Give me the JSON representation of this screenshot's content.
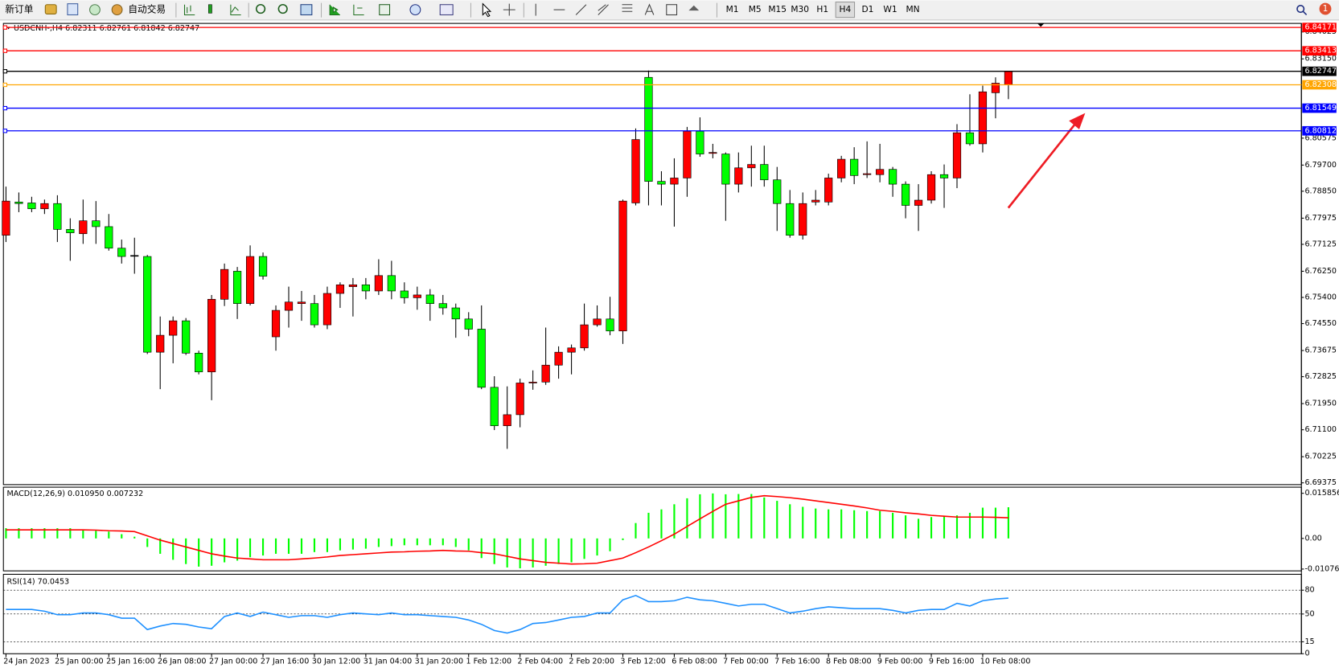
{
  "toolbar": {
    "new_order": "新订单",
    "auto_trading": "自动交易",
    "timeframes": [
      "M1",
      "M5",
      "M15",
      "M30",
      "H1",
      "H4",
      "D1",
      "W1",
      "MN"
    ],
    "active_timeframe": "H4",
    "notifications": "1"
  },
  "chart_data": [
    {
      "type": "candlestick",
      "title": "USDCNH-,H4  6.82311 6.82761 6.81842 6.82747",
      "categories": [
        "24 Jan 2023",
        null,
        null,
        null,
        "25 Jan 00:00",
        null,
        null,
        null,
        "25 Jan 16:00",
        null,
        null,
        null,
        "26 Jan 08:00",
        null,
        null,
        null,
        "27 Jan 00:00",
        null,
        null,
        null,
        "27 Jan 16:00",
        null,
        null,
        null,
        "30 Jan 12:00",
        null,
        null,
        null,
        "31 Jan 04:00",
        null,
        null,
        null,
        "31 Jan 20:00",
        null,
        null,
        null,
        "1 Feb 12:00",
        null,
        null,
        null,
        "2 Feb 04:00",
        null,
        null,
        null,
        "2 Feb 20:00",
        null,
        null,
        null,
        "3 Feb 12:00",
        null,
        null,
        null,
        "6 Feb 08:00",
        null,
        null,
        null,
        "7 Feb 00:00",
        null,
        null,
        null,
        "7 Feb 16:00",
        null,
        null,
        null,
        "8 Feb 08:00",
        null,
        null,
        null,
        "9 Feb 00:00",
        null,
        null,
        null,
        "9 Feb 16:00",
        null,
        null,
        null,
        "10 Feb 08:00",
        null,
        null
      ],
      "open": [
        6.7742,
        6.785,
        6.7847,
        6.7828,
        6.7845,
        6.7761,
        6.7747,
        6.7789,
        6.777,
        6.77,
        6.7673,
        6.7673,
        6.7362,
        6.7417,
        6.7464,
        6.7359,
        6.7298,
        6.7534,
        6.7625,
        6.752,
        6.7673,
        6.7412,
        6.7498,
        6.752,
        6.752,
        6.7451,
        6.7553,
        6.7575,
        6.7581,
        6.7561,
        6.7611,
        6.7561,
        6.7539,
        6.7548,
        6.752,
        6.7506,
        6.747,
        6.7437,
        6.7248,
        6.7123,
        6.7159,
        6.7262,
        6.7265,
        6.732,
        6.7362,
        6.7376,
        6.7451,
        6.747,
        6.7431,
        6.7847,
        6.8255,
        6.7917,
        6.7908,
        6.7928,
        6.808,
        6.8008,
        6.8006,
        6.7908,
        6.7961,
        6.7972,
        6.7922,
        6.7845,
        6.7742,
        6.785,
        6.785,
        6.7928,
        6.7989,
        6.7939,
        6.7939,
        6.7956,
        6.7908,
        6.7839,
        6.7856,
        6.7939,
        6.7928,
        6.8075,
        6.8039,
        6.8205,
        6.82311
      ],
      "high": [
        6.79,
        6.7881,
        6.7867,
        6.7858,
        6.7872,
        6.7797,
        6.7858,
        6.7853,
        6.7811,
        6.7728,
        6.7734,
        6.7678,
        6.7478,
        6.7478,
        6.7473,
        6.7367,
        6.7548,
        6.765,
        6.7639,
        6.7709,
        6.7686,
        6.7514,
        6.7575,
        6.7561,
        6.7548,
        6.7575,
        6.7589,
        6.7603,
        6.7603,
        6.7664,
        6.7659,
        6.7589,
        6.7575,
        6.7567,
        6.7548,
        6.752,
        6.7492,
        6.7514,
        6.7284,
        6.7251,
        6.7276,
        6.7303,
        6.7442,
        6.7381,
        6.7387,
        6.752,
        6.7514,
        6.7542,
        6.7858,
        6.8089,
        6.8277,
        6.795,
        6.7992,
        6.8094,
        6.8125,
        6.8039,
        6.8011,
        6.8011,
        6.8033,
        6.8033,
        6.7964,
        6.7889,
        6.7881,
        6.7889,
        6.7942,
        6.8,
        6.8028,
        6.8047,
        6.8039,
        6.7964,
        6.7917,
        6.7908,
        6.795,
        6.7972,
        6.8103,
        6.82,
        6.8228,
        6.8255,
        6.82761
      ],
      "low": [
        6.772,
        6.7817,
        6.7817,
        6.7811,
        6.772,
        6.7659,
        6.7714,
        6.7714,
        6.7692,
        6.765,
        6.7617,
        6.7356,
        6.7242,
        6.7326,
        6.7353,
        6.729,
        6.7206,
        6.7512,
        6.747,
        6.7514,
        6.7598,
        6.7367,
        6.7442,
        6.7464,
        6.7442,
        6.7437,
        6.7506,
        6.7478,
        6.7534,
        6.7548,
        6.7534,
        6.752,
        6.75,
        6.7464,
        6.7484,
        6.7409,
        6.7414,
        6.7242,
        6.7109,
        6.7048,
        6.7118,
        6.724,
        6.7256,
        6.7276,
        6.729,
        6.7367,
        6.7445,
        6.7417,
        6.7389,
        6.7839,
        6.7839,
        6.7839,
        6.777,
        6.7867,
        6.7997,
        6.7992,
        6.7789,
        6.7881,
        6.79,
        6.79,
        6.7756,
        6.7734,
        6.7728,
        6.7839,
        6.7839,
        6.7914,
        6.7908,
        6.7928,
        6.7914,
        6.7867,
        6.7797,
        6.7756,
        6.7845,
        6.7831,
        6.7895,
        6.8033,
        6.8011,
        6.8122,
        6.81842
      ],
      "close": [
        6.7853,
        6.7845,
        6.7828,
        6.7845,
        6.7761,
        6.775,
        6.7789,
        6.777,
        6.77,
        6.7673,
        6.7675,
        6.7362,
        6.7417,
        6.7464,
        6.7359,
        6.7298,
        6.7534,
        6.7631,
        6.752,
        6.7673,
        6.7609,
        6.7498,
        6.7525,
        6.7525,
        6.7451,
        6.7553,
        6.7581,
        6.7581,
        6.7561,
        6.7611,
        6.7561,
        6.7539,
        6.7548,
        6.752,
        6.7506,
        6.747,
        6.7437,
        6.7248,
        6.7123,
        6.7159,
        6.7262,
        6.7265,
        6.732,
        6.7362,
        6.7376,
        6.7451,
        6.747,
        6.7431,
        6.7853,
        6.8053,
        6.7917,
        6.7908,
        6.7928,
        6.808,
        6.8006,
        6.8011,
        6.7908,
        6.7961,
        6.7972,
        6.7922,
        6.7845,
        6.7742,
        6.7845,
        6.7856,
        6.7928,
        6.7989,
        6.7936,
        6.7942,
        6.7956,
        6.7908,
        6.7839,
        6.7856,
        6.7939,
        6.7928,
        6.8075,
        6.8039,
        6.8208,
        6.8236,
        6.82747
      ],
      "up_color": "#ff0000",
      "down_color": "#00ff00",
      "ylim": [
        6.69318,
        6.84303
      ],
      "yticks": [
        6.84025,
        {
          "value": 6.8315,
          "label": "6.83150"
        },
        6.80575,
        {
          "value": 6.797,
          "label": "6.79700"
        },
        {
          "value": 6.7885,
          "label": "6.78850"
        },
        6.77975,
        6.77125,
        {
          "value": 6.7625,
          "label": "6.76250"
        },
        {
          "value": 6.754,
          "label": "6.75400"
        },
        {
          "value": 6.7455,
          "label": "6.74550"
        },
        6.73675,
        6.72825,
        {
          "value": 6.7195,
          "label": "6.71950"
        },
        {
          "value": 6.711,
          "label": "6.71100"
        },
        6.70225,
        6.69375
      ],
      "hlines": [
        {
          "value": 6.84171,
          "color": "#ff0000"
        },
        {
          "value": 6.83413,
          "color": "#ff0000"
        },
        {
          "value": 6.82747,
          "color": "#000000"
        },
        {
          "value": 6.82308,
          "color": "#ffa500"
        },
        {
          "value": 6.81549,
          "color": "#0000ff"
        },
        {
          "value": 6.80812,
          "color": "#0000ff"
        }
      ],
      "grid": false
    },
    {
      "type": "bar",
      "title": "MACD(12,26,9) 0.010950 0.007232",
      "series": [
        {
          "type": "bar",
          "color": "#00ff00",
          "values": [
            0.0036,
            0.0036,
            0.0036,
            0.0036,
            0.0036,
            0.0036,
            0.003,
            0.0027,
            0.0024,
            0.0015,
            0.0006,
            -0.003,
            -0.0054,
            -0.0075,
            -0.009,
            -0.0099,
            -0.0096,
            -0.0084,
            -0.0078,
            -0.0066,
            -0.006,
            -0.0054,
            -0.0054,
            -0.0054,
            -0.0048,
            -0.0048,
            -0.0042,
            -0.0039,
            -0.0036,
            -0.003,
            -0.0027,
            -0.0024,
            -0.0024,
            -0.0024,
            -0.0024,
            -0.003,
            -0.0042,
            -0.0069,
            -0.009,
            -0.0102,
            -0.0105,
            -0.0102,
            -0.0096,
            -0.009,
            -0.0084,
            -0.0072,
            -0.006,
            -0.0045,
            -0.0006,
            0.0054,
            0.009,
            0.0102,
            0.012,
            0.0141,
            0.0155,
            0.0158,
            0.0155,
            0.0156,
            0.0156,
            0.0144,
            0.0132,
            0.012,
            0.0111,
            0.0105,
            0.0102,
            0.0102,
            0.0099,
            0.0096,
            0.0096,
            0.009,
            0.0081,
            0.0069,
            0.0075,
            0.0078,
            0.0081,
            0.009,
            0.0108,
            0.0108,
            0.01095
          ]
        },
        {
          "type": "line",
          "color": "#ff0000",
          "values": [
            0.003,
            0.003,
            0.003,
            0.003,
            0.003,
            0.003,
            0.003,
            0.0029,
            0.0027,
            0.0026,
            0.0024,
            0.0009,
            -0.0006,
            -0.0018,
            -0.003,
            -0.0042,
            -0.0054,
            -0.0062,
            -0.0069,
            -0.0072,
            -0.0075,
            -0.0075,
            -0.0075,
            -0.0072,
            -0.0069,
            -0.0065,
            -0.006,
            -0.0057,
            -0.0054,
            -0.0051,
            -0.0048,
            -0.0047,
            -0.0045,
            -0.0044,
            -0.0042,
            -0.0044,
            -0.0045,
            -0.005,
            -0.0054,
            -0.0063,
            -0.0072,
            -0.0078,
            -0.0084,
            -0.0087,
            -0.009,
            -0.0089,
            -0.0087,
            -0.0078,
            -0.0069,
            -0.005,
            -0.003,
            -0.0008,
            0.0015,
            0.0042,
            0.0069,
            0.0095,
            0.012,
            0.0132,
            0.0144,
            0.015,
            0.0147,
            0.0143,
            0.0138,
            0.0132,
            0.0126,
            0.012,
            0.0114,
            0.0107,
            0.0099,
            0.0095,
            0.009,
            0.0086,
            0.0081,
            0.0078,
            0.0075,
            0.0075,
            0.0075,
            0.0074,
            0.007232
          ]
        }
      ],
      "ylim": [
        -0.0114,
        0.018
      ],
      "yticks": [
        0.015856,
        {
          "value": 0,
          "label": "0.00"
        },
        -0.01076
      ]
    },
    {
      "type": "line",
      "title": "RSI(14) 70.0453",
      "color": "#1e90ff",
      "values": [
        55.7,
        55.7,
        55.7,
        53.5,
        49.1,
        49.1,
        51.3,
        51.3,
        49.1,
        44.7,
        44.7,
        30.4,
        34.8,
        38.1,
        37.0,
        33.7,
        31.5,
        46.9,
        51.3,
        46.9,
        52.4,
        49.1,
        45.8,
        48.0,
        48.0,
        45.8,
        49.1,
        51.3,
        50.2,
        49.1,
        51.3,
        49.1,
        49.1,
        48.0,
        46.9,
        45.8,
        42.5,
        37.0,
        29.3,
        26.0,
        30.4,
        38.1,
        39.2,
        42.5,
        45.8,
        46.9,
        51.3,
        51.3,
        67.8,
        73.3,
        65.6,
        65.6,
        66.7,
        71.1,
        67.8,
        66.7,
        63.4,
        60.1,
        62.3,
        62.3,
        56.8,
        51.3,
        53.5,
        56.8,
        59.0,
        57.9,
        56.8,
        56.8,
        56.8,
        54.6,
        51.3,
        54.6,
        55.7,
        55.7,
        63.4,
        60.1,
        66.7,
        68.9,
        70.0453
      ],
      "ylim": [
        0,
        100
      ],
      "yticks": [
        80,
        50,
        15,
        0
      ]
    }
  ]
}
